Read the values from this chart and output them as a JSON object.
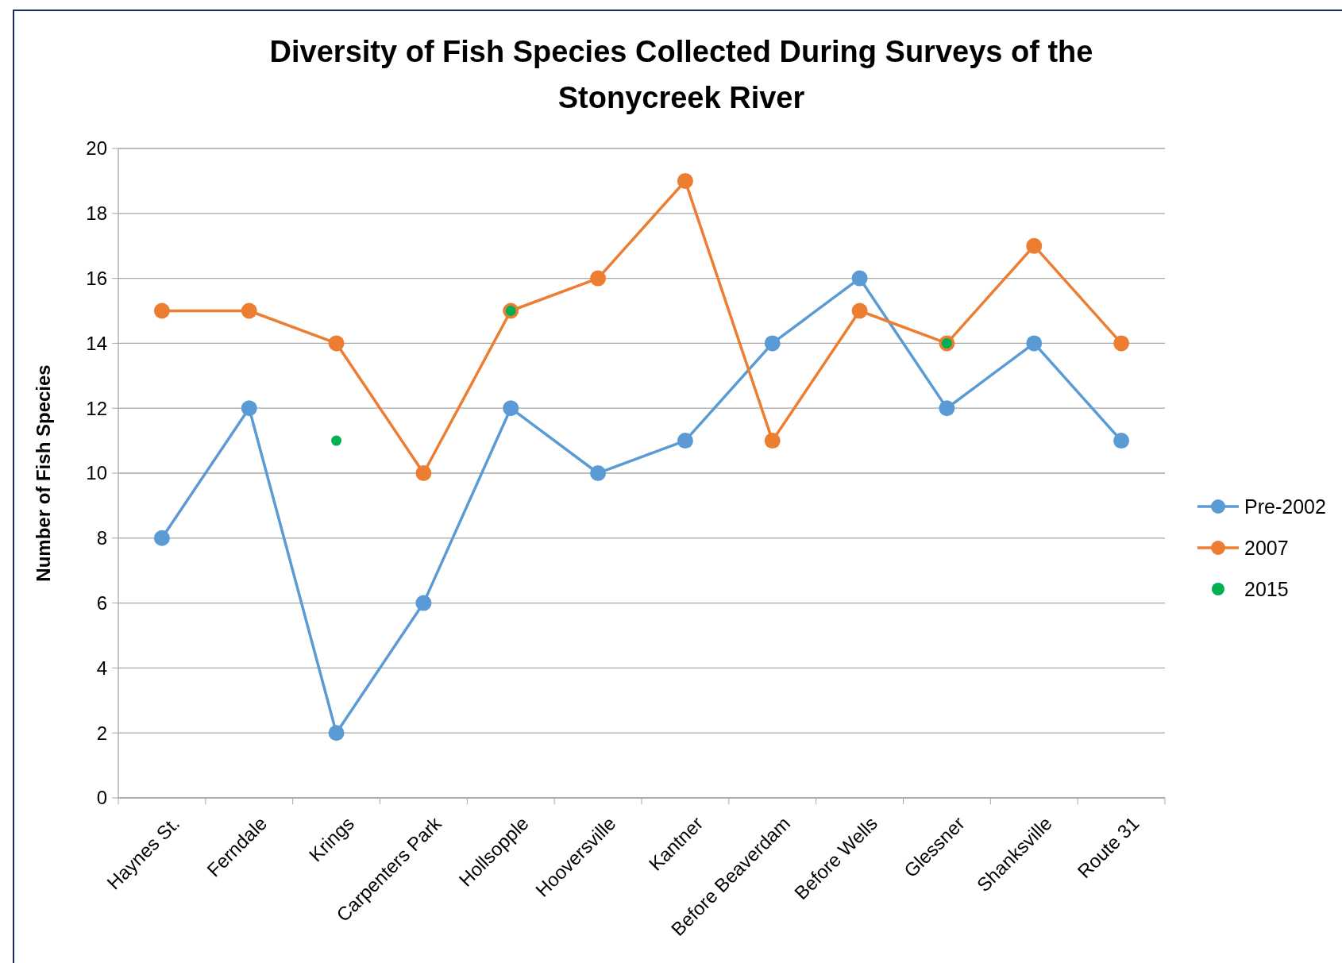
{
  "chart_data": {
    "type": "line",
    "title": "Diversity of Fish Species Collected During Surveys of the Stonycreek River",
    "ylabel": "Number of Fish Species",
    "categories": [
      "Haynes St.",
      "Ferndale",
      "Krings",
      "Carpenters Park",
      "Hollsopple",
      "Hooversville",
      "Kantner",
      "Before Beaverdam",
      "Before Wells",
      "Glessner",
      "Shanksville",
      "Route 31"
    ],
    "series": [
      {
        "name": "Pre-2002",
        "color": "#5b9bd5",
        "values": [
          8,
          12,
          2,
          6,
          12,
          10,
          11,
          14,
          16,
          12,
          14,
          11
        ]
      },
      {
        "name": "2007",
        "color": "#ed7d31",
        "values": [
          15,
          15,
          14,
          10,
          15,
          16,
          19,
          11,
          15,
          14,
          17,
          14
        ]
      },
      {
        "name": "2015",
        "type": "scatter",
        "color": "#00b050",
        "values": [
          null,
          null,
          11,
          null,
          15,
          null,
          null,
          null,
          null,
          14,
          null,
          null
        ]
      }
    ],
    "ylim": [
      0,
      20
    ],
    "yticks": [
      0,
      2,
      4,
      6,
      8,
      10,
      12,
      14,
      16,
      18,
      20
    ],
    "grid": "y",
    "legend": "right",
    "marker": "circle"
  }
}
